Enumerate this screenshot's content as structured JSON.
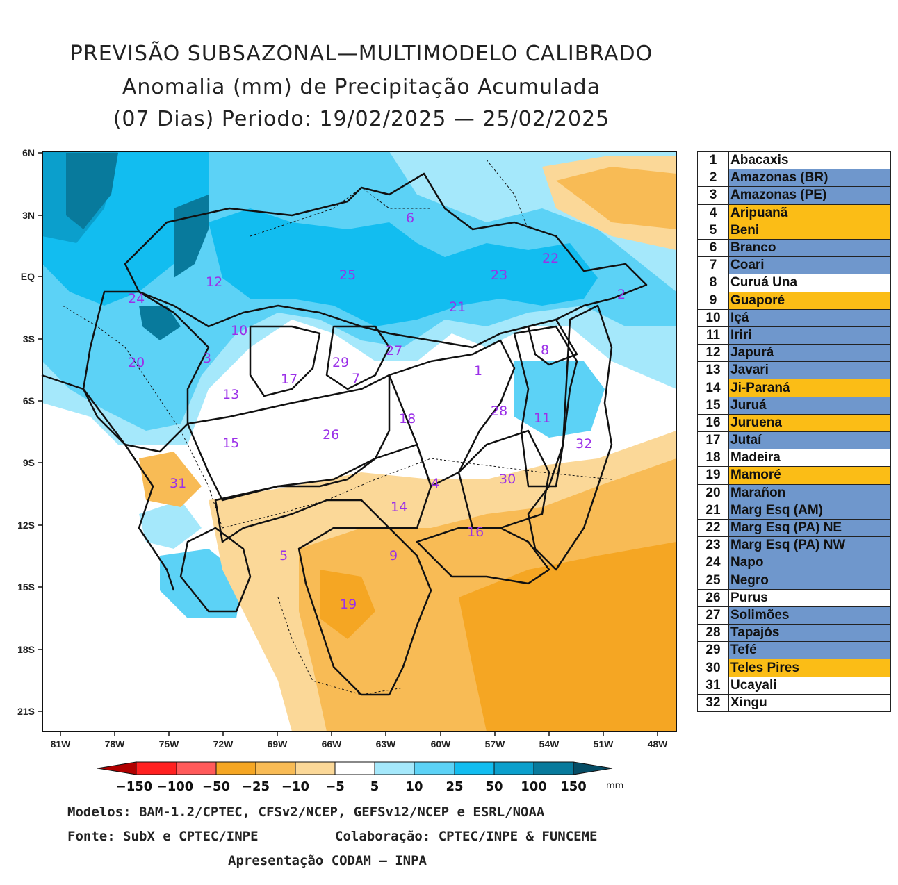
{
  "titles": {
    "line1": "PREVISÃO SUBSAZONAL—MULTIMODELO CALIBRADO",
    "line2": "Anomalia (mm) de Precipitação Acumulada",
    "line3": "(07 Dias) Periodo: 19/02/2025 — 25/02/2025"
  },
  "axes": {
    "lat_labels": [
      "6N",
      "3N",
      "EQ",
      "3S",
      "6S",
      "9S",
      "12S",
      "15S",
      "18S",
      "21S"
    ],
    "lon_labels": [
      "81W",
      "78W",
      "75W",
      "72W",
      "69W",
      "66W",
      "63W",
      "60W",
      "57W",
      "54W",
      "51W",
      "48W"
    ]
  },
  "colorbar": {
    "labels": [
      "−150",
      "−100",
      "−50",
      "−25",
      "−10",
      "−5",
      "5",
      "10",
      "25",
      "50",
      "100",
      "150"
    ],
    "unit": "mm",
    "colors": [
      "#b10000",
      "#ff2020",
      "#ff5a5a",
      "#f5a623",
      "#f8bb55",
      "#fbd898",
      "#ffffff",
      "#a5e8fb",
      "#5cd2f6",
      "#12bdf0",
      "#0b9fcc",
      "#087a9c",
      "#064d66"
    ]
  },
  "basin_numbers": [
    "1",
    "2",
    "3",
    "4",
    "5",
    "6",
    "7",
    "8",
    "9",
    "10",
    "11",
    "12",
    "13",
    "14",
    "15",
    "16",
    "17",
    "18",
    "19",
    "20",
    "21",
    "22",
    "23",
    "24",
    "25",
    "26",
    "27",
    "28",
    "29",
    "30",
    "31",
    "32"
  ],
  "legend": [
    {
      "num": "1",
      "name": "Abacaxis",
      "color": "white"
    },
    {
      "num": "2",
      "name": "Amazonas (BR)",
      "color": "blue"
    },
    {
      "num": "3",
      "name": "Amazonas (PE)",
      "color": "blue"
    },
    {
      "num": "4",
      "name": "Aripuanã",
      "color": "orange"
    },
    {
      "num": "5",
      "name": "Beni",
      "color": "orange"
    },
    {
      "num": "6",
      "name": "Branco",
      "color": "blue"
    },
    {
      "num": "7",
      "name": "Coari",
      "color": "blue"
    },
    {
      "num": "8",
      "name": "Curuá Una",
      "color": "white"
    },
    {
      "num": "9",
      "name": "Guaporé",
      "color": "orange"
    },
    {
      "num": "10",
      "name": "Içá",
      "color": "blue"
    },
    {
      "num": "11",
      "name": "Iriri",
      "color": "blue"
    },
    {
      "num": "12",
      "name": "Japurá",
      "color": "blue"
    },
    {
      "num": "13",
      "name": "Javari",
      "color": "blue"
    },
    {
      "num": "14",
      "name": "Ji-Paraná",
      "color": "orange"
    },
    {
      "num": "15",
      "name": "Juruá",
      "color": "blue"
    },
    {
      "num": "16",
      "name": "Juruena",
      "color": "orange"
    },
    {
      "num": "17",
      "name": "Jutaí",
      "color": "blue"
    },
    {
      "num": "18",
      "name": "Madeira",
      "color": "white"
    },
    {
      "num": "19",
      "name": "Mamoré",
      "color": "orange"
    },
    {
      "num": "20",
      "name": "Marañon",
      "color": "blue"
    },
    {
      "num": "21",
      "name": "Marg Esq (AM)",
      "color": "blue"
    },
    {
      "num": "22",
      "name": "Marg Esq (PA) NE",
      "color": "blue"
    },
    {
      "num": "23",
      "name": "Marg Esq (PA) NW",
      "color": "blue"
    },
    {
      "num": "24",
      "name": "Napo",
      "color": "blue"
    },
    {
      "num": "25",
      "name": "Negro",
      "color": "blue"
    },
    {
      "num": "26",
      "name": "Purus",
      "color": "white"
    },
    {
      "num": "27",
      "name": "Solimões",
      "color": "blue"
    },
    {
      "num": "28",
      "name": "Tapajós",
      "color": "blue"
    },
    {
      "num": "29",
      "name": "Tefé",
      "color": "blue"
    },
    {
      "num": "30",
      "name": "Teles Pires",
      "color": "orange"
    },
    {
      "num": "31",
      "name": "Ucayali",
      "color": "white"
    },
    {
      "num": "32",
      "name": "Xingu",
      "color": "white"
    }
  ],
  "credits": {
    "line1": "Modelos: BAM-1.2/CPTEC, CFSv2/NCEP, GEFSv12/NCEP e ESRL/NOAA",
    "line2_left": "Fonte: SubX e CPTEC/INPE",
    "line2_right": "Colaboração: CPTEC/INPE & FUNCEME",
    "line3": "Apresentação CODAM — INPA"
  }
}
